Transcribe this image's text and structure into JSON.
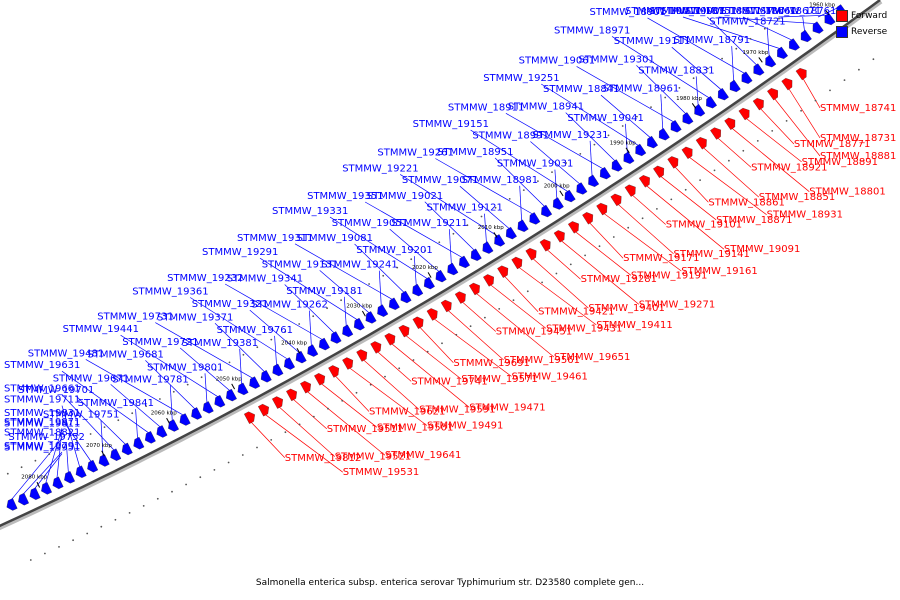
{
  "caption": "Salmonella enterica subsp. enterica serovar Typhimurium str. D23580 complete gen...",
  "legend": [
    {
      "label": "Forward",
      "color": "#ff0000"
    },
    {
      "label": "Reverse",
      "color": "#0000ff"
    }
  ],
  "scale_ticks": [
    "1960 kbp",
    "1970 kbp",
    "1980 kbp",
    "1990 kbp",
    "2000 kbp",
    "2010 kbp",
    "2020 kbp",
    "2030 kbp",
    "2040 kbp",
    "2050 kbp",
    "2060 kbp",
    "2070 kbp",
    "2080 kbp"
  ],
  "reverse_genes": [
    "STMMW_18761",
    "STMMW_18661",
    "STMMW_18751",
    "STMMW_18671",
    "STMMW_18811",
    "STMMW_19011",
    "STMMW_18721",
    "STMMW_19001",
    "STMMW_18901",
    "STMMW_18791",
    "STMMW_19111",
    "STMMW_18971",
    "STMMW_18831",
    "STMMW_19301",
    "STMMW_19061",
    "STMMW_18961",
    "STMMW_18841",
    "STMMW_19251",
    "STMMW_19041",
    "STMMW_18941",
    "STMMW_18911",
    "STMMW_19231",
    "STMMW_18991",
    "STMMW_19151",
    "STMMW_19031",
    "STMMW_18951",
    "STMMW_19261",
    "STMMW_18981",
    "STMMW_19071",
    "STMMW_19221",
    "STMMW_19121",
    "STMMW_19021",
    "STMMW_19351",
    "STMMW_19211",
    "STMMW_19051",
    "STMMW_19331",
    "STMMW_19201",
    "STMMW_19081",
    "STMMW_19311",
    "STMMW_19241",
    "STMMW_19131",
    "STMMW_19291",
    "STMMW_19181",
    "STMMW_19341",
    "STMMW_19232",
    "STMMW_19262",
    "STMMW_19321",
    "STMMW_19361",
    "STMMW_19761",
    "STMMW_19371",
    "STMMW_19731",
    "STMMW_19381",
    "STMMW_19721",
    "STMMW_19441",
    "STMMW_19801",
    "STMMW_19681",
    "STMMW_19481",
    "STMMW_19781",
    "STMMW_19671",
    "STMMW_19631",
    "STMMW_19841",
    "STMMW_19701",
    "STMMW_19661",
    "STMMW_19751",
    "STMMW_19831",
    "STMMW_19711",
    "STMMW_19752",
    "STMMW_19811",
    "STMMW_19871",
    "STMMW_19951",
    "STMMW_19791",
    "STMMW_18821"
  ],
  "forward_genes": [
    "STMMW_18741",
    "STMMW_18731",
    "STMMW_18881",
    "STMMW_18771",
    "STMMW_18891",
    "STMMW_18801",
    "STMMW_18921",
    "STMMW_18851",
    "STMMW_18931",
    "STMMW_18861",
    "STMMW_18871",
    "STMMW_19091",
    "STMMW_19101",
    "STMMW_19141",
    "STMMW_19161",
    "STMMW_19171",
    "STMMW_19191",
    "STMMW_19271",
    "STMMW_19281",
    "STMMW_19401",
    "STMMW_19411",
    "STMMW_19421",
    "STMMW_19431",
    "STMMW_19651",
    "STMMW_19451",
    "STMMW_19561",
    "STMMW_19461",
    "STMMW_19691",
    "STMMW_19571",
    "STMMW_19471",
    "STMMW_19741",
    "STMMW_19591",
    "STMMW_19491",
    "STMMW_19621",
    "STMMW_19501",
    "STMMW_19641",
    "STMMW_19511",
    "STMMW_19521",
    "STMMW_19531",
    "STMMW_19812"
  ]
}
